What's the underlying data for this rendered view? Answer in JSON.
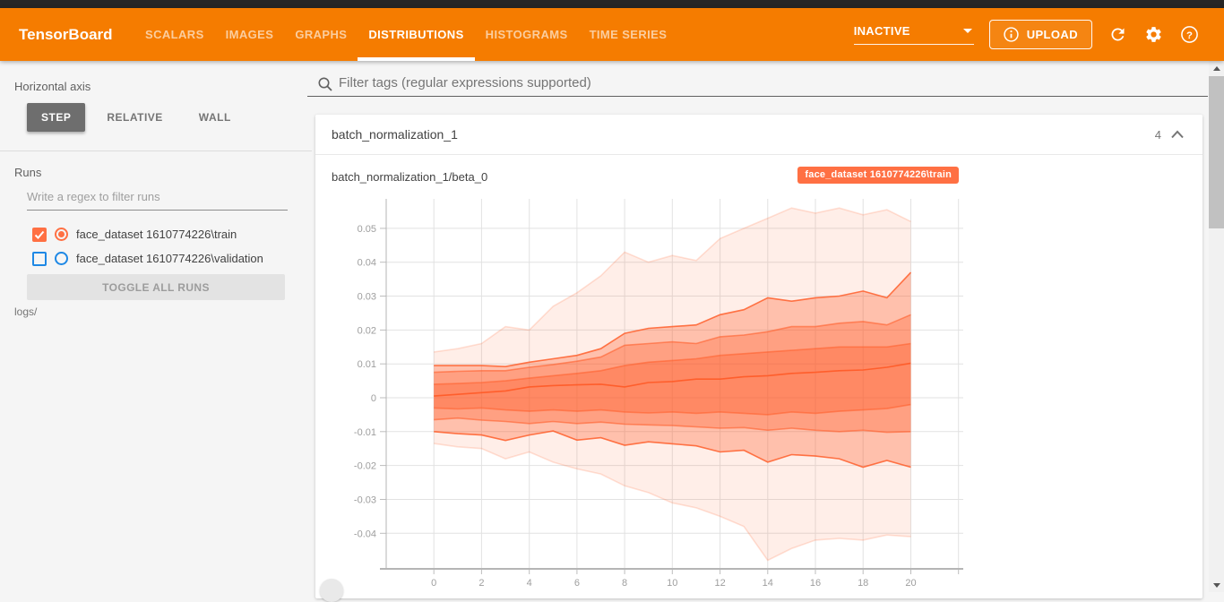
{
  "header": {
    "title": "TensorBoard",
    "tabs": [
      "SCALARS",
      "IMAGES",
      "GRAPHS",
      "DISTRIBUTIONS",
      "HISTOGRAMS",
      "TIME SERIES"
    ],
    "active_tab": "DISTRIBUTIONS",
    "status": "INACTIVE",
    "upload_label": "UPLOAD"
  },
  "sidebar": {
    "horizontal_axis_label": "Horizontal axis",
    "axis_options": [
      "STEP",
      "RELATIVE",
      "WALL"
    ],
    "axis_selected": "STEP",
    "runs": {
      "label": "Runs",
      "filter_placeholder": "Write a regex to filter runs",
      "items": [
        {
          "name": "face_dataset 1610774226\\train",
          "color": "#ff7043",
          "checked": true
        },
        {
          "name": "face_dataset 1610774226\\validation",
          "color": "#1e88e5",
          "checked": false
        }
      ],
      "toggle_all_label": "TOGGLE ALL RUNS",
      "path": "logs/"
    }
  },
  "main": {
    "filter_tags_placeholder": "Filter tags (regular expressions supported)",
    "card": {
      "title": "batch_normalization_1",
      "count": "4"
    }
  },
  "colors": {
    "header_orange": "#f57c00",
    "run_train": "#ff7043",
    "run_validation": "#1e88e5",
    "chart_base": "#ff5722"
  },
  "chart_data": {
    "type": "area",
    "subtype": "tensorboard-distribution-fan",
    "title": "batch_normalization_1/beta_0",
    "run_badge": "face_dataset 1610774226\\train",
    "color": "#ff5722",
    "grid": true,
    "xlim": [
      -2,
      22.2
    ],
    "ylim": [
      -0.0505,
      0.0587
    ],
    "x_ticks": [
      0,
      2,
      4,
      6,
      8,
      10,
      12,
      14,
      16,
      18,
      20
    ],
    "x_gridlines": [
      0,
      2,
      4,
      6,
      8,
      10,
      12,
      14,
      16,
      18,
      20,
      22
    ],
    "y_ticks": [
      "0.05",
      "0.04",
      "0.03",
      "0.02",
      "0.01",
      "0",
      "-0.01",
      "-0.02",
      "-0.03",
      "-0.04"
    ],
    "x": [
      0,
      1,
      2,
      3,
      4,
      5,
      6,
      7,
      8,
      9,
      10,
      11,
      12,
      13,
      14,
      15,
      16,
      17,
      18,
      19,
      20
    ],
    "percentiles": {
      "max": [
        0.0135,
        0.0145,
        0.016,
        0.021,
        0.02,
        0.027,
        0.031,
        0.036,
        0.043,
        0.04,
        0.042,
        0.0405,
        0.047,
        0.05,
        0.053,
        0.056,
        0.0545,
        0.056,
        0.054,
        0.0555,
        0.052
      ],
      "p93": [
        0.0095,
        0.0095,
        0.0095,
        0.0092,
        0.0105,
        0.0115,
        0.0125,
        0.0145,
        0.019,
        0.0205,
        0.021,
        0.0215,
        0.0245,
        0.026,
        0.0295,
        0.0285,
        0.0295,
        0.03,
        0.0315,
        0.0295,
        0.037
      ],
      "p84": [
        0.0075,
        0.0078,
        0.008,
        0.008,
        0.009,
        0.0098,
        0.0108,
        0.012,
        0.0155,
        0.016,
        0.0165,
        0.016,
        0.018,
        0.0185,
        0.0195,
        0.021,
        0.021,
        0.022,
        0.0225,
        0.0215,
        0.0245
      ],
      "p69": [
        0.004,
        0.0042,
        0.0045,
        0.005,
        0.0058,
        0.0065,
        0.0072,
        0.008,
        0.0095,
        0.0105,
        0.011,
        0.0115,
        0.0125,
        0.013,
        0.0135,
        0.014,
        0.0145,
        0.015,
        0.015,
        0.015,
        0.016
      ],
      "p50": [
        0.0005,
        0.001,
        0.0015,
        0.002,
        0.0032,
        0.0036,
        0.0038,
        0.004,
        0.0032,
        0.0045,
        0.0048,
        0.0055,
        0.0055,
        0.0062,
        0.0065,
        0.0072,
        0.0075,
        0.008,
        0.0082,
        0.009,
        0.0102
      ],
      "p31": [
        -0.003,
        -0.0033,
        -0.003,
        -0.0036,
        -0.004,
        -0.0036,
        -0.004,
        -0.0036,
        -0.0042,
        -0.0045,
        -0.0042,
        -0.0046,
        -0.0042,
        -0.0046,
        -0.005,
        -0.0042,
        -0.0046,
        -0.004,
        -0.0036,
        -0.0032,
        -0.002
      ],
      "p16": [
        -0.0065,
        -0.006,
        -0.0066,
        -0.007,
        -0.0076,
        -0.007,
        -0.0076,
        -0.0072,
        -0.0078,
        -0.008,
        -0.0082,
        -0.0086,
        -0.009,
        -0.0088,
        -0.0096,
        -0.009,
        -0.0096,
        -0.01,
        -0.0096,
        -0.0102,
        -0.01
      ],
      "p7": [
        -0.01,
        -0.0106,
        -0.011,
        -0.0126,
        -0.011,
        -0.0098,
        -0.0125,
        -0.0118,
        -0.014,
        -0.013,
        -0.0136,
        -0.0142,
        -0.016,
        -0.0155,
        -0.019,
        -0.0168,
        -0.0172,
        -0.018,
        -0.0205,
        -0.0185,
        -0.0205
      ],
      "min": [
        -0.0135,
        -0.0145,
        -0.015,
        -0.018,
        -0.016,
        -0.019,
        -0.021,
        -0.0225,
        -0.026,
        -0.028,
        -0.031,
        -0.0325,
        -0.035,
        -0.038,
        -0.048,
        -0.0445,
        -0.042,
        -0.0415,
        -0.042,
        -0.0405,
        -0.041
      ]
    },
    "bands": [
      {
        "lo": "min",
        "hi": "max",
        "fill_opacity": 0.1,
        "edge_opacity": 0.18
      },
      {
        "lo": "p7",
        "hi": "p93",
        "fill_opacity": 0.3,
        "edge_opacity": 0.8
      },
      {
        "lo": "p16",
        "hi": "p84",
        "fill_opacity": 0.3,
        "edge_opacity": 0.55
      },
      {
        "lo": "p31",
        "hi": "p69",
        "fill_opacity": 0.3,
        "edge_opacity": 0.5
      }
    ],
    "median_key": "p50"
  }
}
